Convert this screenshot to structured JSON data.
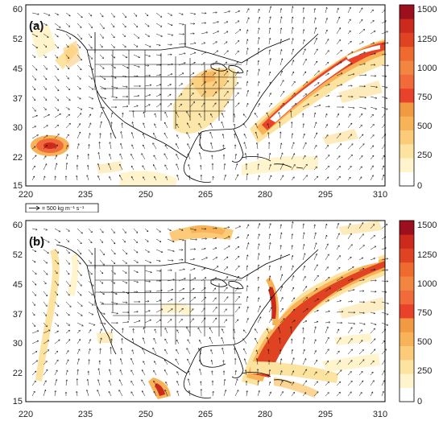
{
  "panels": [
    {
      "label": "(a)",
      "x_ticks": [
        "220",
        "235",
        "250",
        "265",
        "280",
        "295",
        "310"
      ],
      "y_ticks": [
        "60",
        "52",
        "45",
        "37",
        "30",
        "22",
        "15"
      ],
      "colorbar_ticks": [
        "1500",
        "1250",
        "1000",
        "750",
        "500",
        "250",
        "0"
      ]
    },
    {
      "label": "(b)",
      "x_ticks": [
        "220",
        "235",
        "250",
        "265",
        "280",
        "295",
        "310"
      ],
      "y_ticks": [
        "60",
        "52",
        "45",
        "37",
        "30",
        "22",
        "15"
      ],
      "colorbar_ticks": [
        "1500",
        "1250",
        "1000",
        "750",
        "500",
        "250",
        "0"
      ]
    }
  ],
  "reference_vector": {
    "label": "= 500 kg m⁻¹ s⁻¹"
  },
  "colorbar": {
    "colors": [
      "#ffffff",
      "#fff4cc",
      "#fde3a0",
      "#fbcb7a",
      "#f8b258",
      "#f29a42",
      "#e8432a",
      "#f06a3a",
      "#f2853f",
      "#ee6a2f",
      "#e04322",
      "#cc2a1c",
      "#9c0f1c"
    ]
  },
  "colors": {
    "land_outline": "#000000",
    "arrow": "#111111",
    "frame": "#000000"
  }
}
